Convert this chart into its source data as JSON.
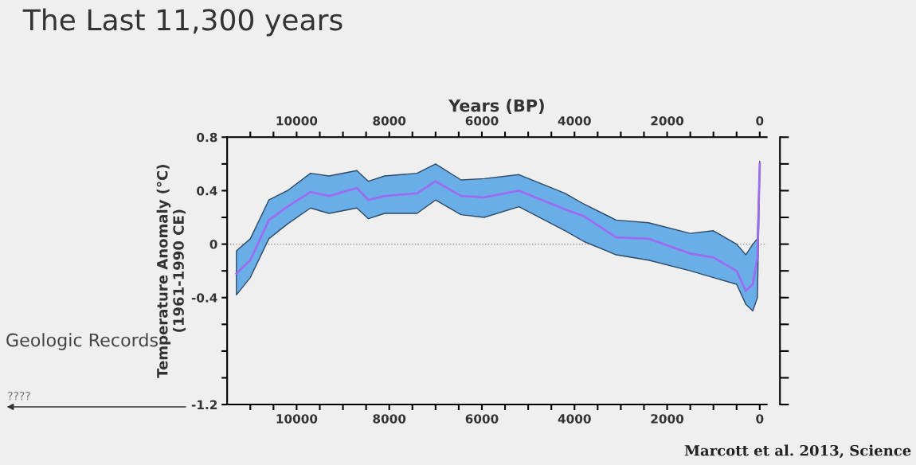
{
  "chart_data": {
    "type": "line",
    "title": "The Last 11,300 years",
    "x2label": "Years (BP)",
    "ylabel": "Temperature Anomaly (°C)\n(1961-1990 CE)",
    "annotations": [
      "Geologic Records",
      "????",
      "Marcott et al. 2013, Science"
    ],
    "x": [
      11300,
      11000,
      10600,
      10200,
      9700,
      9300,
      8700,
      8450,
      8100,
      7400,
      7000,
      6450,
      5950,
      5200,
      4200,
      3800,
      3100,
      2400,
      1500,
      1000,
      500,
      300,
      150,
      50,
      0
    ],
    "series": [
      {
        "color": "#9b6cf0",
        "values": [
          -0.22,
          -0.12,
          0.18,
          0.28,
          0.39,
          0.36,
          0.42,
          0.33,
          0.36,
          0.38,
          0.47,
          0.36,
          0.35,
          0.4,
          0.26,
          0.21,
          0.05,
          0.04,
          -0.07,
          -0.1,
          -0.2,
          -0.35,
          -0.3,
          -0.1,
          0.6
        ],
        "lower": [
          -0.38,
          -0.25,
          0.04,
          0.15,
          0.27,
          0.23,
          0.27,
          0.19,
          0.23,
          0.23,
          0.33,
          0.22,
          0.2,
          0.28,
          0.1,
          0.02,
          -0.08,
          -0.12,
          -0.2,
          -0.25,
          -0.3,
          -0.45,
          -0.5,
          -0.4,
          0.55
        ],
        "upper": [
          -0.05,
          0.04,
          0.33,
          0.4,
          0.53,
          0.51,
          0.55,
          0.47,
          0.51,
          0.53,
          0.6,
          0.48,
          0.49,
          0.52,
          0.38,
          0.3,
          0.18,
          0.16,
          0.08,
          0.1,
          0.0,
          -0.08,
          0.0,
          0.04,
          0.62
        ]
      }
    ],
    "xlim": [
      11500,
      -150
    ],
    "xticks": [
      10000,
      {
        "value": 9500,
        "label": null
      },
      8000,
      {
        "value": 8500,
        "label": null
      },
      {
        "value": 9000,
        "label": null
      },
      {
        "value": 10500,
        "label": null
      },
      {
        "value": 11000,
        "label": null
      },
      6000,
      {
        "value": 6500,
        "label": null
      },
      {
        "value": 7000,
        "label": null
      },
      {
        "value": 7500,
        "label": null
      },
      4000,
      {
        "value": 4500,
        "label": null
      },
      {
        "value": 5000,
        "label": null
      },
      {
        "value": 5500,
        "label": null
      },
      2000,
      {
        "value": 2500,
        "label": null
      },
      {
        "value": 3000,
        "label": null
      },
      {
        "value": 3500,
        "label": null
      },
      0,
      {
        "value": 500,
        "label": null
      },
      {
        "value": 1000,
        "label": null
      },
      {
        "value": 1500,
        "label": null
      }
    ],
    "x2lim": [
      11500,
      -150
    ],
    "x2ticks": [
      10000,
      {
        "value": 9500,
        "label": null
      },
      8000,
      {
        "value": 8500,
        "label": null
      },
      {
        "value": 9000,
        "label": null
      },
      {
        "value": 10500,
        "label": null
      },
      {
        "value": 11000,
        "label": null
      },
      6000,
      {
        "value": 6500,
        "label": null
      },
      {
        "value": 7000,
        "label": null
      },
      {
        "value": 7500,
        "label": null
      },
      4000,
      {
        "value": 4500,
        "label": null
      },
      {
        "value": 5000,
        "label": null
      },
      {
        "value": 5500,
        "label": null
      },
      2000,
      {
        "value": 2500,
        "label": null
      },
      {
        "value": 3000,
        "label": null
      },
      {
        "value": 3500,
        "label": null
      },
      0,
      {
        "value": 500,
        "label": null
      },
      {
        "value": 1000,
        "label": null
      },
      {
        "value": 1500,
        "label": null
      }
    ],
    "ylim": [
      -1.2,
      0.8
    ],
    "yticks": [
      0.8,
      {
        "value": 0.6,
        "label": null
      },
      0.4,
      {
        "value": 0.2,
        "label": null
      },
      0,
      {
        "value": -0.2,
        "label": null
      },
      {
        "value": -0.4,
        "label": "-0.4"
      },
      {
        "value": -0.6,
        "label": null
      },
      {
        "value": -0.8,
        "label": null
      },
      {
        "value": -1.0,
        "label": null
      },
      {
        "value": -1.2,
        "label": "-1.2"
      }
    ],
    "ref_lines": [
      {
        "axis": "y",
        "value": 0,
        "color": "#888888",
        "line_style": "dotted"
      }
    ],
    "grid": false,
    "legend": false
  }
}
